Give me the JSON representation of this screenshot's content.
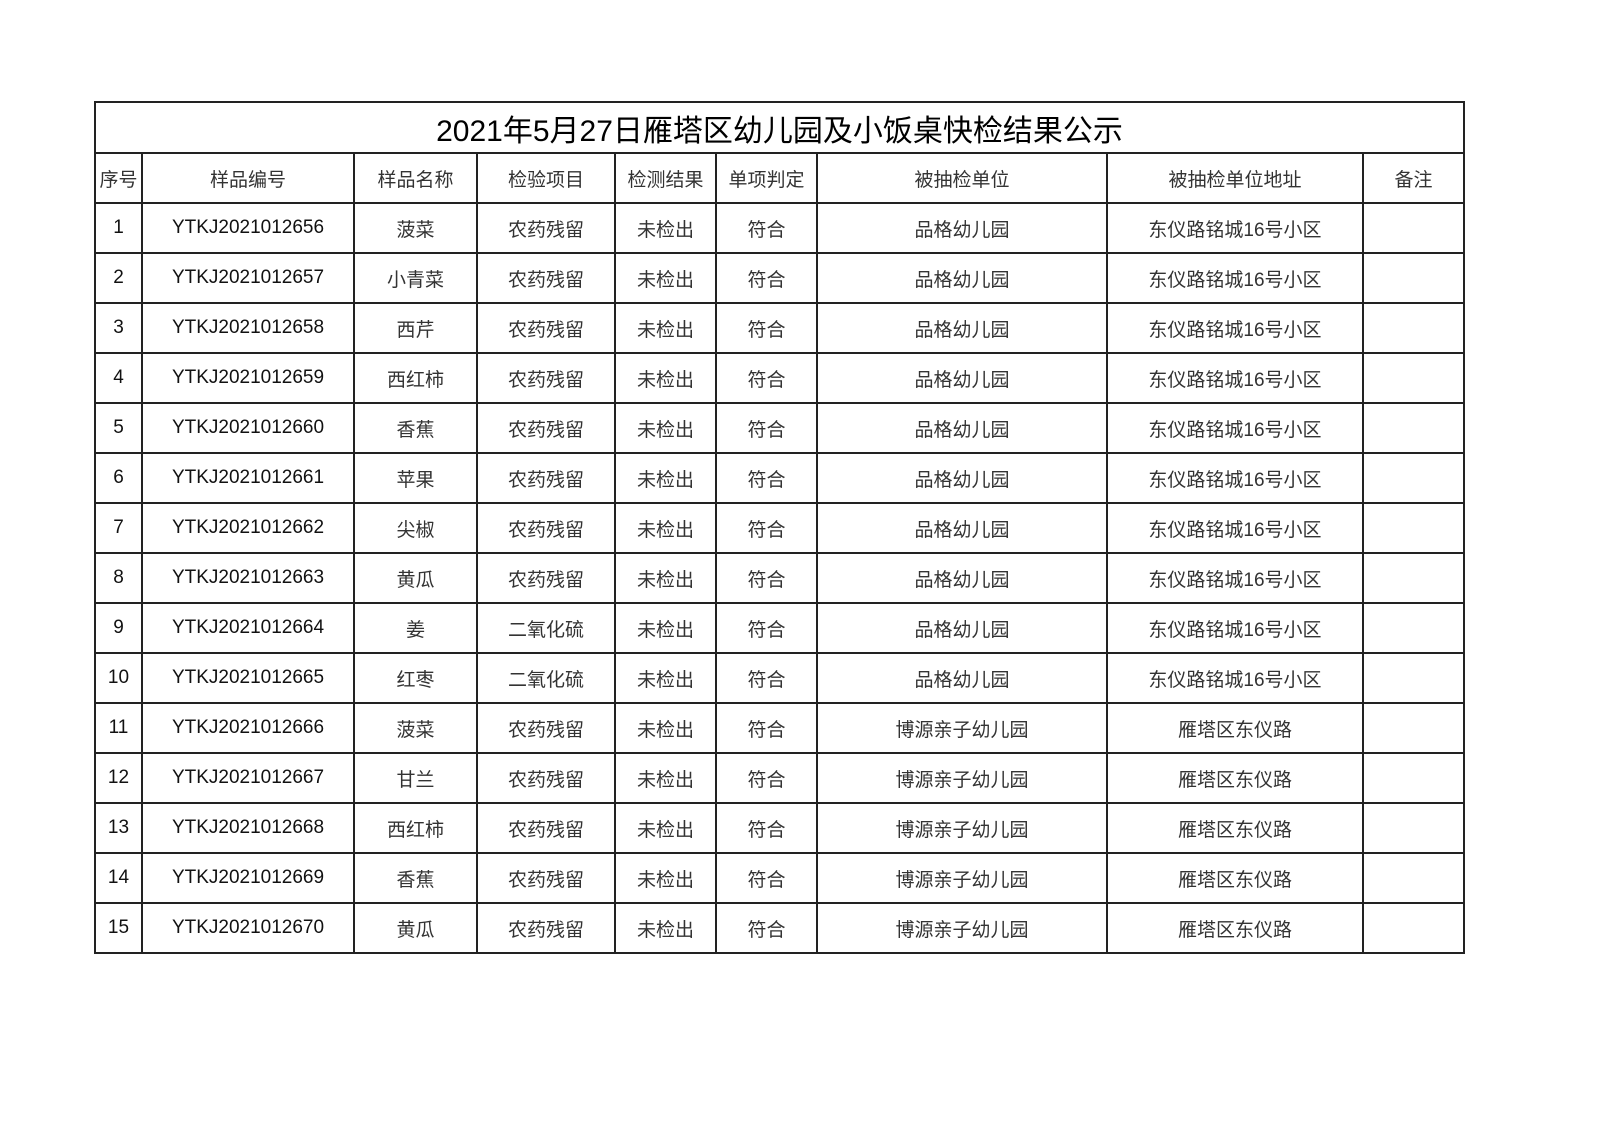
{
  "title": "2021年5月27日雁塔区幼儿园及小饭桌快检结果公示",
  "headers": [
    "序号",
    "样品编号",
    "样品名称",
    "检验项目",
    "检测结果",
    "单项判定",
    "被抽检单位",
    "被抽检单位地址",
    "备注"
  ],
  "rows": [
    [
      "1",
      "YTKJ2021012656",
      "菠菜",
      "农药残留",
      "未检出",
      "符合",
      "品格幼儿园",
      "东仪路铭城16号小区",
      ""
    ],
    [
      "2",
      "YTKJ2021012657",
      "小青菜",
      "农药残留",
      "未检出",
      "符合",
      "品格幼儿园",
      "东仪路铭城16号小区",
      ""
    ],
    [
      "3",
      "YTKJ2021012658",
      "西芹",
      "农药残留",
      "未检出",
      "符合",
      "品格幼儿园",
      "东仪路铭城16号小区",
      ""
    ],
    [
      "4",
      "YTKJ2021012659",
      "西红柿",
      "农药残留",
      "未检出",
      "符合",
      "品格幼儿园",
      "东仪路铭城16号小区",
      ""
    ],
    [
      "5",
      "YTKJ2021012660",
      "香蕉",
      "农药残留",
      "未检出",
      "符合",
      "品格幼儿园",
      "东仪路铭城16号小区",
      ""
    ],
    [
      "6",
      "YTKJ2021012661",
      "苹果",
      "农药残留",
      "未检出",
      "符合",
      "品格幼儿园",
      "东仪路铭城16号小区",
      ""
    ],
    [
      "7",
      "YTKJ2021012662",
      "尖椒",
      "农药残留",
      "未检出",
      "符合",
      "品格幼儿园",
      "东仪路铭城16号小区",
      ""
    ],
    [
      "8",
      "YTKJ2021012663",
      "黄瓜",
      "农药残留",
      "未检出",
      "符合",
      "品格幼儿园",
      "东仪路铭城16号小区",
      ""
    ],
    [
      "9",
      "YTKJ2021012664",
      "姜",
      "二氧化硫",
      "未检出",
      "符合",
      "品格幼儿园",
      "东仪路铭城16号小区",
      ""
    ],
    [
      "10",
      "YTKJ2021012665",
      "红枣",
      "二氧化硫",
      "未检出",
      "符合",
      "品格幼儿园",
      "东仪路铭城16号小区",
      ""
    ],
    [
      "11",
      "YTKJ2021012666",
      "菠菜",
      "农药残留",
      "未检出",
      "符合",
      "博源亲子幼儿园",
      "雁塔区东仪路",
      ""
    ],
    [
      "12",
      "YTKJ2021012667",
      "甘兰",
      "农药残留",
      "未检出",
      "符合",
      "博源亲子幼儿园",
      "雁塔区东仪路",
      ""
    ],
    [
      "13",
      "YTKJ2021012668",
      "西红柿",
      "农药残留",
      "未检出",
      "符合",
      "博源亲子幼儿园",
      "雁塔区东仪路",
      ""
    ],
    [
      "14",
      "YTKJ2021012669",
      "香蕉",
      "农药残留",
      "未检出",
      "符合",
      "博源亲子幼儿园",
      "雁塔区东仪路",
      ""
    ],
    [
      "15",
      "YTKJ2021012670",
      "黄瓜",
      "农药残留",
      "未检出",
      "符合",
      "博源亲子幼儿园",
      "雁塔区东仪路",
      ""
    ]
  ]
}
